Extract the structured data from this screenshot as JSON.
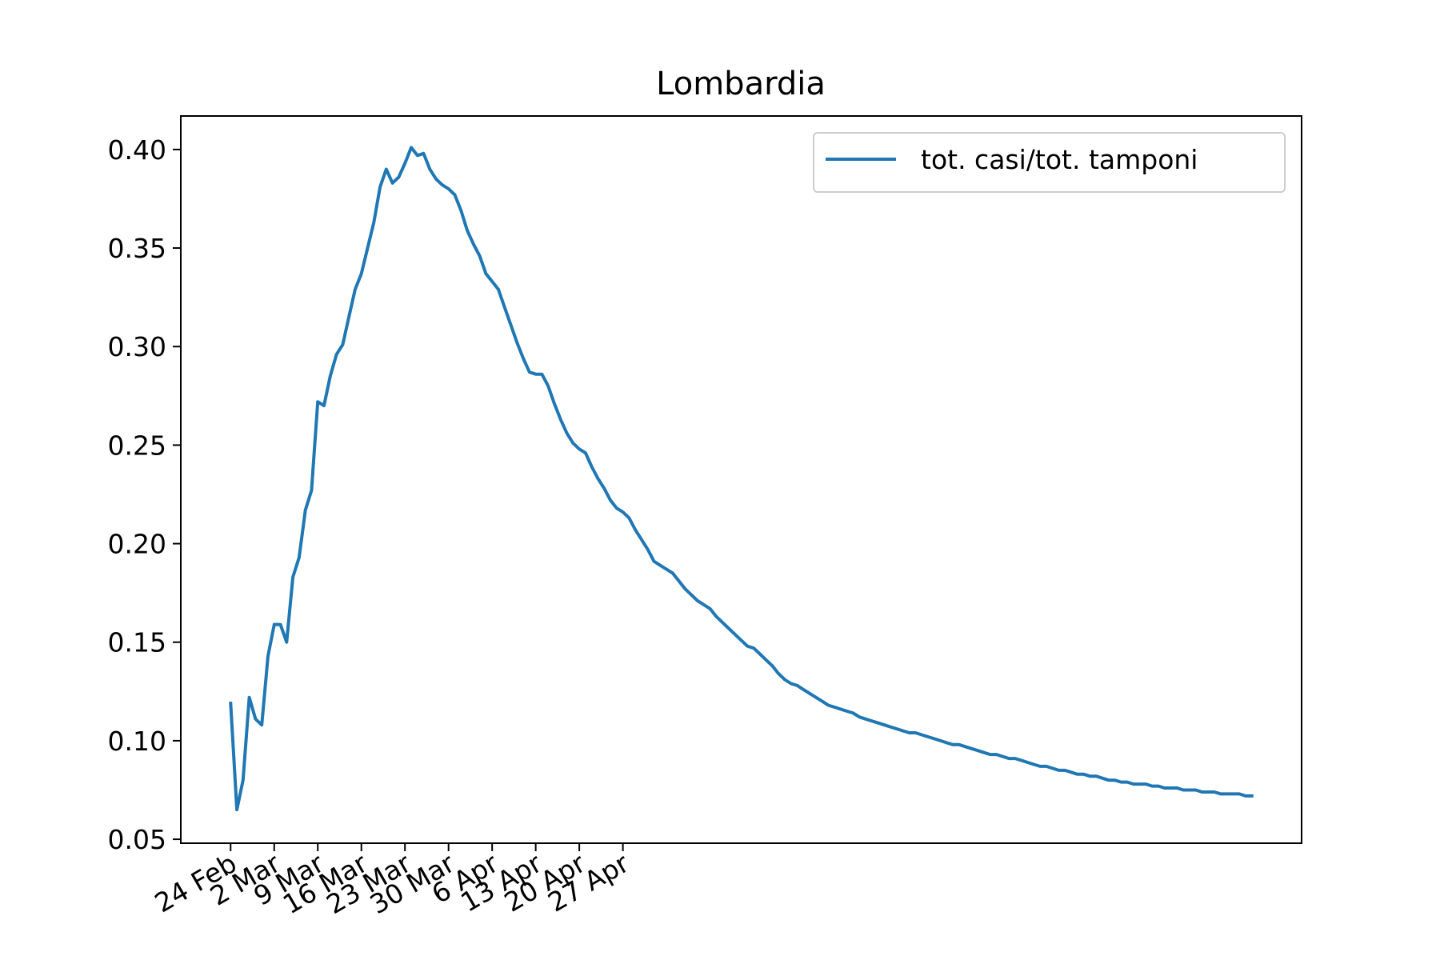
{
  "chart_data": {
    "type": "line",
    "title": "Lombardia",
    "xlabel": "",
    "ylabel": "",
    "x_tick_labels": [
      "24 Feb",
      "2 Mar",
      "9 Mar",
      "16 Mar",
      "23 Mar",
      "30 Mar",
      "6 Apr",
      "13 Apr",
      "20 Apr",
      "27 Apr"
    ],
    "y_tick_labels": [
      "0.05",
      "0.10",
      "0.15",
      "0.20",
      "0.25",
      "0.30",
      "0.35",
      "0.40"
    ],
    "y_ticks": [
      0.05,
      0.1,
      0.15,
      0.2,
      0.25,
      0.3,
      0.35,
      0.4
    ],
    "x_ticks_day": [
      0,
      7,
      14,
      21,
      28,
      35,
      42,
      49,
      56,
      63
    ],
    "xlim": [
      -8,
      172
    ],
    "ylim": [
      0.048,
      0.417
    ],
    "grid": false,
    "legend_position": "top-right",
    "series": [
      {
        "name": "tot. casi/tot. tamponi",
        "color": "#1f77b4",
        "x": [
          0,
          1,
          2,
          3,
          4,
          5,
          6,
          7,
          8,
          9,
          10,
          11,
          12,
          13,
          14,
          15,
          16,
          17,
          18,
          19,
          20,
          21,
          22,
          23,
          24,
          25,
          26,
          27,
          28,
          29,
          30,
          31,
          32,
          33,
          34,
          35,
          36,
          37,
          38,
          39,
          40,
          41,
          42,
          43,
          44,
          45,
          46,
          47,
          48,
          49,
          50,
          51,
          52,
          53,
          54,
          55,
          56,
          57,
          58,
          59,
          60,
          61,
          62,
          63,
          64,
          65,
          66,
          67,
          68,
          69,
          70,
          71,
          72,
          73,
          74,
          75,
          76,
          77,
          78,
          79,
          80,
          81,
          82,
          83,
          84,
          85,
          86,
          87,
          88,
          89,
          90,
          91,
          92,
          93,
          94,
          95,
          96,
          97,
          98,
          99,
          100,
          101,
          102,
          103,
          104,
          105,
          106,
          107,
          108,
          109,
          110,
          111,
          112,
          113,
          114,
          115,
          116,
          117,
          118,
          119,
          120,
          121,
          122,
          123,
          124,
          125,
          126,
          127,
          128,
          129,
          130,
          131,
          132,
          133,
          134,
          135,
          136,
          137,
          138,
          139,
          140,
          141,
          142,
          143,
          144,
          145,
          146,
          147,
          148,
          149,
          150,
          151,
          152,
          153,
          154,
          155,
          156,
          157,
          158,
          159,
          160,
          161,
          162,
          163,
          164
        ],
        "y": [
          0.119,
          0.065,
          0.08,
          0.122,
          0.111,
          0.108,
          0.143,
          0.159,
          0.159,
          0.15,
          0.183,
          0.193,
          0.217,
          0.227,
          0.272,
          0.27,
          0.285,
          0.296,
          0.301,
          0.315,
          0.329,
          0.337,
          0.35,
          0.363,
          0.381,
          0.39,
          0.383,
          0.386,
          0.393,
          0.401,
          0.397,
          0.398,
          0.39,
          0.385,
          0.382,
          0.38,
          0.377,
          0.369,
          0.359,
          0.352,
          0.346,
          0.337,
          0.333,
          0.329,
          0.32,
          0.311,
          0.302,
          0.294,
          0.287,
          0.286,
          0.286,
          0.28,
          0.271,
          0.263,
          0.256,
          0.251,
          0.248,
          0.246,
          0.239,
          0.233,
          0.228,
          0.222,
          0.218,
          0.216,
          0.213,
          0.207,
          0.202,
          0.197,
          0.191,
          0.189,
          0.187,
          0.185,
          0.181,
          0.177,
          0.174,
          0.171,
          0.169,
          0.167,
          0.163,
          0.16,
          0.157,
          0.154,
          0.151,
          0.148,
          0.147,
          0.144,
          0.141,
          0.138,
          0.134,
          0.131,
          0.129,
          0.128,
          0.126,
          0.124,
          0.122,
          0.12,
          0.118,
          0.117,
          0.116,
          0.115,
          0.114,
          0.112,
          0.111,
          0.11,
          0.109,
          0.108,
          0.107,
          0.106,
          0.105,
          0.104,
          0.104,
          0.103,
          0.102,
          0.101,
          0.1,
          0.099,
          0.098,
          0.098,
          0.097,
          0.096,
          0.095,
          0.094,
          0.093,
          0.093,
          0.092,
          0.091,
          0.091,
          0.09,
          0.089,
          0.088,
          0.087,
          0.087,
          0.086,
          0.085,
          0.085,
          0.084,
          0.083,
          0.083,
          0.082,
          0.082,
          0.081,
          0.08,
          0.08,
          0.079,
          0.079,
          0.078,
          0.078,
          0.078,
          0.077,
          0.077,
          0.076,
          0.076,
          0.076,
          0.075,
          0.075,
          0.075,
          0.074,
          0.074,
          0.074,
          0.073,
          0.073,
          0.073,
          0.073,
          0.072,
          0.072
        ]
      }
    ]
  }
}
